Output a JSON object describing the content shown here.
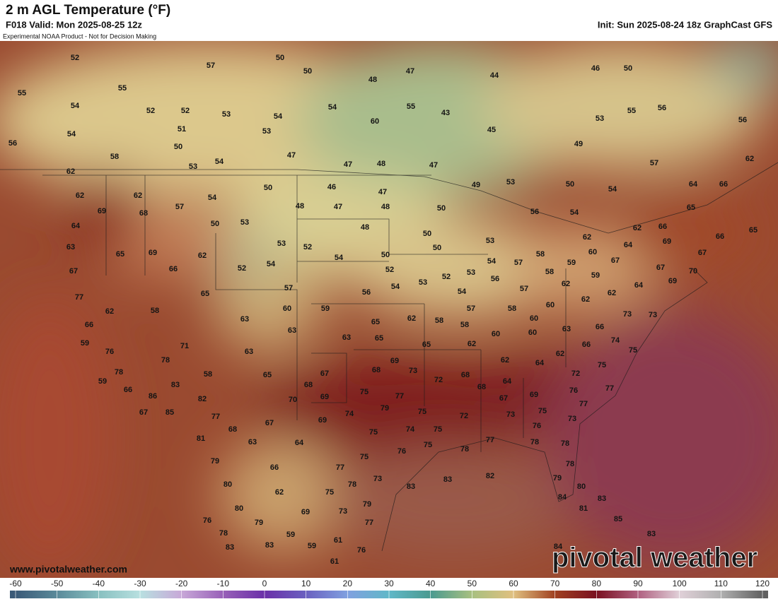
{
  "header": {
    "title": "2 m AGL Temperature (°F)",
    "valid": "F018 Valid: Mon 2025-08-25 12z",
    "init": "Init: Sun 2025-08-24 18z GraphCast GFS",
    "disclaimer": "Experimental NOAA Product - Not for Decision Making"
  },
  "map": {
    "labels": [
      52,
      57,
      50,
      50,
      47,
      44,
      46,
      50,
      55,
      55,
      48,
      54,
      52,
      52,
      53,
      54,
      54,
      55,
      43,
      53,
      55,
      56,
      56,
      54,
      51,
      53,
      60,
      45,
      56,
      58,
      50,
      47,
      49,
      53,
      54,
      47,
      48,
      47,
      57,
      62,
      62,
      62,
      62,
      57,
      54,
      50,
      46,
      47,
      49,
      53,
      50,
      54,
      64,
      66,
      69,
      68,
      48,
      47,
      48,
      50,
      56,
      54,
      65,
      64,
      50,
      53,
      48,
      50,
      62,
      66,
      66,
      65,
      63,
      65,
      69,
      62,
      53,
      52,
      54,
      50,
      50,
      53,
      62,
      64,
      69,
      67,
      67,
      66,
      52,
      54,
      52,
      53,
      52,
      53,
      54,
      57,
      58,
      60,
      59,
      67,
      58,
      67,
      70,
      59,
      56,
      64,
      69,
      77,
      65,
      57,
      56,
      54,
      54,
      57,
      62,
      62,
      62,
      62,
      58,
      60,
      59,
      63,
      65,
      62,
      58,
      57,
      58,
      60,
      73,
      73,
      66,
      63,
      60,
      58,
      63,
      66,
      59,
      71,
      63,
      65,
      60,
      60,
      74,
      76,
      63,
      65,
      62,
      66,
      75,
      62,
      78,
      69,
      73,
      62,
      64,
      75,
      78,
      58,
      65,
      67,
      68,
      72,
      68,
      72,
      59,
      83,
      68,
      64,
      77,
      66,
      86,
      82,
      70,
      69,
      75,
      77,
      68,
      67,
      69,
      76,
      67,
      85,
      77,
      74,
      79,
      75,
      72,
      73,
      75,
      77,
      69,
      68,
      67,
      75,
      74,
      75,
      76,
      73,
      81,
      63,
      64,
      77,
      78,
      76,
      75,
      78,
      78,
      79,
      66,
      75,
      77,
      82,
      78,
      80,
      78,
      73,
      83,
      83,
      79,
      80,
      62,
      75,
      84,
      83,
      80,
      69,
      73,
      79,
      81,
      76,
      79,
      77,
      85,
      78,
      59,
      61,
      83,
      83,
      83,
      59,
      76,
      84,
      61
    ]
  },
  "watermark": "pivotal weather",
  "website": "www.pivotalweather.com",
  "colorbar": {
    "ticks": [
      -60,
      -50,
      -40,
      -30,
      -20,
      -10,
      0,
      10,
      20,
      30,
      40,
      50,
      60,
      70,
      80,
      90,
      100,
      110,
      120
    ],
    "colors": [
      "#3a5a78",
      "#5a8a9a",
      "#88c0c0",
      "#b8e0e0",
      "#c8a8d8",
      "#9860b8",
      "#6a30a8",
      "#6a60c0",
      "#80a0e0",
      "#60b8c8",
      "#4a9a90",
      "#a8c080",
      "#e0c080",
      "#a04020",
      "#7a1020",
      "#b06080",
      "#e0d0d8",
      "#b0b0b0",
      "#606060"
    ]
  }
}
